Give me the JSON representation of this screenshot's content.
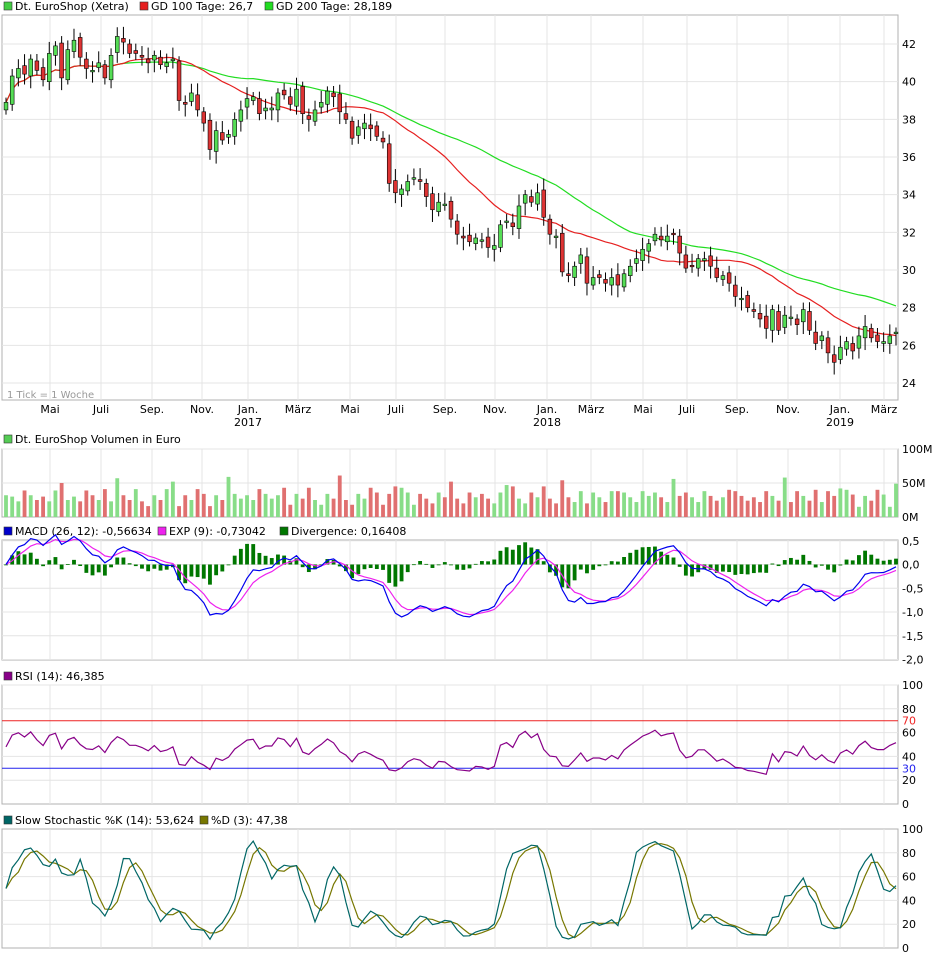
{
  "colors": {
    "background": "#ffffff",
    "grid": "#e4e4e4",
    "frame": "#b0b0b0",
    "candle_up": "#55dd55",
    "candle_down": "#dd3333",
    "gd100": "#e62020",
    "gd200": "#22dd22",
    "volume_up": "#88dd88",
    "volume_down": "#e07070",
    "macd": "#0000ee",
    "exp": "#ee22ee",
    "divergence": "#007700",
    "rsi": "#880088",
    "rsi_oversold": "#2222ee",
    "rsi_overbought": "#ee2222",
    "stoch_k": "#006666",
    "stoch_d": "#777700"
  },
  "price_panel": {
    "legend": [
      {
        "label": "Dt. EuroShop (Xetra)",
        "color": "#44cc44"
      },
      {
        "label": "GD 100 Tage: 26,7",
        "color": "#e62020"
      },
      {
        "label": "GD 200 Tage: 28,189",
        "color": "#22dd22"
      }
    ],
    "note": "1 Tick = 1 Woche"
  },
  "x_axis": {
    "months": [
      "Mai",
      "Juli",
      "Sep.",
      "Nov.",
      "Jan.",
      "März",
      "Mai",
      "Juli",
      "Sep.",
      "Nov.",
      "Jan.",
      "März",
      "Mai",
      "Juli",
      "Sep.",
      "Nov.",
      "Jan.",
      "März"
    ],
    "years": [
      "2017",
      "2018",
      "2019"
    ]
  },
  "volume_panel": {
    "legend": [
      {
        "label": "Dt. EuroShop Volumen in Euro",
        "color": "#55cc55"
      }
    ]
  },
  "macd_panel": {
    "legend": [
      {
        "label": "MACD (26, 12): -0,56634",
        "color": "#0000cc"
      },
      {
        "label": "EXP (9): -0,73042",
        "color": "#ee22ee"
      },
      {
        "label": "Divergence: 0,16408",
        "color": "#007700"
      }
    ]
  },
  "rsi_panel": {
    "legend": [
      {
        "label": "RSI (14): 46,385",
        "color": "#880088"
      }
    ]
  },
  "stoch_panel": {
    "legend": [
      {
        "label": "Slow Stochastic %K (14): 53,624",
        "color": "#006666"
      },
      {
        "label": "%D (3): 47,38",
        "color": "#777700"
      }
    ]
  },
  "chart_data": [
    {
      "type": "candlestick",
      "title": "Dt. EuroShop (Xetra)",
      "x_tick_labels": [
        "Mai",
        "Juli",
        "Sep.",
        "Nov.",
        "Jan.",
        "März",
        "Mai",
        "Juli",
        "Sep.",
        "Nov.",
        "Jan.",
        "März",
        "Mai",
        "Juli",
        "Sep.",
        "Nov.",
        "Jan.",
        "März"
      ],
      "years": [
        "2017",
        "2018",
        "2019"
      ],
      "y_ticks": [
        24,
        26,
        28,
        30,
        32,
        34,
        36,
        38,
        40,
        42
      ],
      "ylim": [
        23,
        43.5
      ],
      "close": [
        38.9,
        40.3,
        40.7,
        40.4,
        41.2,
        40.6,
        40.1,
        41.5,
        41.9,
        40.2,
        41.7,
        42.2,
        41.3,
        40.7,
        40.6,
        41.0,
        40.2,
        41.4,
        42.4,
        42.1,
        41.5,
        41.5,
        41.3,
        41.0,
        41.4,
        40.9,
        41.0,
        41.2,
        39.0,
        38.8,
        39.4,
        38.5,
        37.8,
        36.4,
        37.4,
        36.9,
        37.2,
        38.0,
        38.5,
        39.1,
        39.2,
        38.3,
        38.6,
        38.6,
        39.4,
        39.3,
        38.8,
        39.6,
        38.3,
        38.0,
        38.5,
        38.9,
        39.5,
        39.2,
        38.4,
        38.0,
        37.0,
        37.6,
        37.8,
        37.5,
        37.1,
        36.8,
        34.6,
        34.1,
        34.3,
        34.7,
        34.9,
        34.7,
        33.9,
        33.2,
        33.6,
        33.5,
        32.7,
        31.9,
        31.7,
        31.5,
        31.7,
        31.6,
        31.2,
        31.3,
        32.4,
        32.6,
        32.3,
        33.4,
        34.0,
        33.6,
        34.1,
        32.8,
        31.9,
        31.8,
        29.9,
        29.7,
        30.2,
        30.8,
        29.3,
        29.6,
        29.6,
        29.3,
        29.6,
        29.2,
        29.8,
        30.2,
        30.6,
        31.1,
        31.4,
        31.9,
        31.6,
        31.8,
        31.9,
        30.9,
        30.1,
        30.2,
        30.6,
        30.6,
        30.2,
        29.6,
        29.7,
        29.3,
        28.6,
        28.5,
        28.0,
        27.8,
        27.4,
        26.9,
        27.9,
        26.8,
        27.6,
        27.5,
        27.1,
        27.9,
        26.8,
        26.1,
        26.5,
        25.6,
        25.1,
        25.9,
        26.2,
        25.7,
        26.5,
        27.0,
        26.4,
        26.2,
        26.2,
        26.5,
        26.7
      ],
      "gd100_last": 26.7,
      "gd200_last": 28.189
    },
    {
      "type": "bar",
      "title": "Dt. EuroShop Volumen in Euro",
      "y_ticks": [
        "100M",
        "50M",
        "0M"
      ],
      "ylim": [
        0,
        100
      ]
    },
    {
      "type": "line",
      "title": "MACD",
      "series": [
        {
          "name": "MACD (26, 12)",
          "last": -0.56634
        },
        {
          "name": "EXP (9)",
          "last": -0.73042
        },
        {
          "name": "Divergence",
          "last": 0.16408
        }
      ],
      "y_ticks": [
        "0,5",
        "0,0",
        "-0,5",
        "-1,0",
        "-1,5",
        "-2,0"
      ],
      "ylim": [
        -2.0,
        0.55
      ]
    },
    {
      "type": "line",
      "title": "RSI (14)",
      "series": [
        {
          "name": "RSI (14)",
          "last": 46.385
        }
      ],
      "y_ticks": [
        "100",
        "80",
        "70",
        "60",
        "40",
        "30",
        "20",
        "0"
      ],
      "ylim": [
        0,
        100
      ]
    },
    {
      "type": "line",
      "title": "Slow Stochastic",
      "series": [
        {
          "name": "Slow Stochastic %K (14)",
          "last": 53.624
        },
        {
          "name": "%D (3)",
          "last": 47.38
        }
      ],
      "y_ticks": [
        "100",
        "80",
        "60",
        "40",
        "20",
        "0"
      ],
      "ylim": [
        0,
        100
      ]
    }
  ]
}
